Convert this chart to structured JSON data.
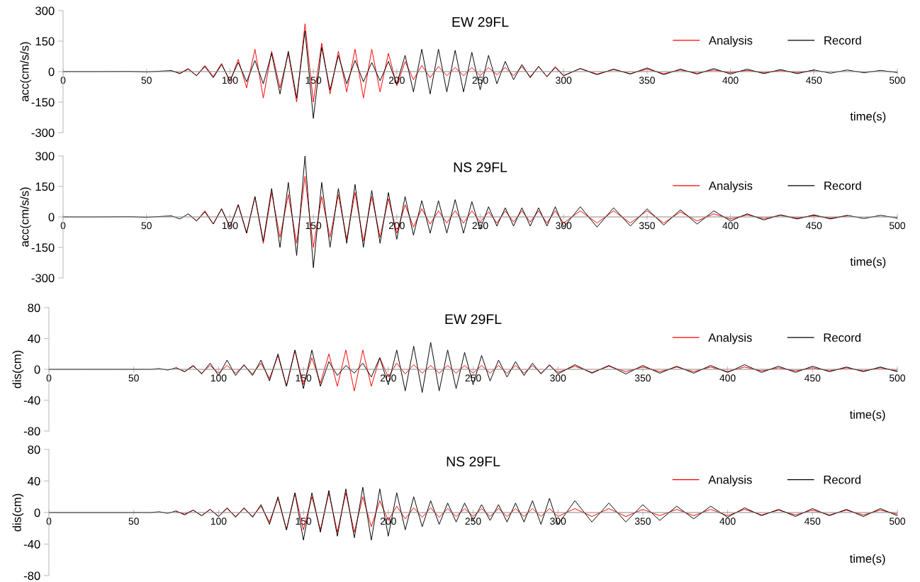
{
  "chart_data": [
    {
      "type": "line",
      "title": "EW 29FL",
      "xlabel": "time(s)",
      "ylabel": "acc(cm/s/s)",
      "xlim": [
        0,
        500
      ],
      "ylim": [
        -300,
        300
      ],
      "xticks": [
        0,
        50,
        100,
        150,
        200,
        250,
        300,
        350,
        400,
        450,
        500
      ],
      "yticks": [
        -300,
        -150,
        0,
        150,
        300
      ],
      "legend": "top right",
      "grid": false,
      "x": [
        0,
        20,
        40,
        50,
        60,
        65,
        70,
        75,
        80,
        85,
        90,
        95,
        100,
        105,
        110,
        115,
        120,
        125,
        130,
        135,
        140,
        145,
        150,
        155,
        160,
        165,
        170,
        175,
        180,
        185,
        190,
        195,
        200,
        205,
        210,
        215,
        220,
        225,
        230,
        235,
        240,
        245,
        250,
        255,
        260,
        265,
        270,
        275,
        280,
        285,
        290,
        295,
        300,
        310,
        320,
        330,
        340,
        350,
        360,
        370,
        380,
        390,
        400,
        410,
        420,
        430,
        440,
        450,
        460,
        470,
        480,
        490,
        500
      ],
      "series": [
        {
          "name": "Analysis",
          "color": "#ff0000",
          "values": [
            null,
            null,
            null,
            null,
            null,
            3,
            -8,
            15,
            -20,
            30,
            -25,
            40,
            -50,
            60,
            -80,
            110,
            -130,
            100,
            -80,
            90,
            -150,
            235,
            -150,
            140,
            -110,
            100,
            -100,
            110,
            -130,
            110,
            -100,
            90,
            -70,
            50,
            -40,
            30,
            -30,
            25,
            -20,
            20,
            -20,
            20,
            -20,
            20,
            -15,
            20,
            -20,
            25,
            -25,
            25,
            -25,
            25,
            -20,
            15,
            -12,
            10,
            -10,
            12,
            -10,
            8,
            -8,
            8,
            -6,
            6,
            -6,
            5,
            -5,
            6,
            null,
            null,
            null,
            null,
            null
          ]
        },
        {
          "name": "Record",
          "color": "#000000",
          "values": [
            0,
            0,
            1,
            -2,
            3,
            5,
            -10,
            12,
            -20,
            25,
            -30,
            35,
            -45,
            45,
            -50,
            55,
            -60,
            90,
            -110,
            100,
            -130,
            200,
            -230,
            120,
            -90,
            80,
            -60,
            55,
            -50,
            45,
            -45,
            50,
            -60,
            80,
            -100,
            110,
            -110,
            110,
            -100,
            105,
            -100,
            95,
            -90,
            80,
            -60,
            50,
            -40,
            35,
            -30,
            25,
            -25,
            20,
            -20,
            15,
            -15,
            12,
            -12,
            18,
            -15,
            12,
            -12,
            15,
            -12,
            12,
            -10,
            10,
            -10,
            8,
            -8,
            8,
            -6,
            6,
            -5
          ]
        }
      ]
    },
    {
      "type": "line",
      "title": "NS 29FL",
      "xlabel": "time(s)",
      "ylabel": "acc(cm/s/s)",
      "xlim": [
        0,
        500
      ],
      "ylim": [
        -300,
        300
      ],
      "xticks": [
        0,
        50,
        100,
        150,
        200,
        250,
        300,
        350,
        400,
        450,
        500
      ],
      "yticks": [
        -300,
        -150,
        0,
        150,
        300
      ],
      "legend": "top right",
      "grid": false,
      "x": [
        0,
        20,
        40,
        50,
        60,
        65,
        70,
        75,
        80,
        85,
        90,
        95,
        100,
        105,
        110,
        115,
        120,
        125,
        130,
        135,
        140,
        145,
        150,
        155,
        160,
        165,
        170,
        175,
        180,
        185,
        190,
        195,
        200,
        205,
        210,
        215,
        220,
        225,
        230,
        235,
        240,
        245,
        250,
        255,
        260,
        265,
        270,
        275,
        280,
        285,
        290,
        295,
        300,
        310,
        320,
        330,
        340,
        350,
        360,
        370,
        380,
        390,
        400,
        410,
        420,
        430,
        440,
        450,
        460,
        470,
        480,
        490,
        500
      ],
      "series": [
        {
          "name": "Analysis",
          "color": "#ff0000",
          "values": [
            null,
            null,
            null,
            null,
            null,
            null,
            null,
            15,
            -20,
            30,
            -35,
            40,
            -50,
            60,
            -80,
            100,
            -130,
            120,
            -100,
            110,
            -130,
            200,
            -150,
            100,
            -100,
            110,
            -110,
            120,
            -120,
            100,
            -100,
            90,
            -80,
            60,
            -50,
            40,
            -35,
            30,
            -30,
            30,
            -30,
            30,
            -25,
            25,
            -30,
            30,
            -25,
            30,
            -25,
            30,
            -30,
            30,
            -30,
            30,
            -30,
            30,
            -30,
            30,
            -30,
            25,
            -20,
            15,
            -10,
            10,
            -8,
            8,
            -6,
            6,
            -6,
            5,
            null,
            null,
            null
          ]
        },
        {
          "name": "Record",
          "color": "#000000",
          "values": [
            0,
            0,
            1,
            -2,
            3,
            5,
            -10,
            15,
            -20,
            25,
            -35,
            40,
            -50,
            60,
            -80,
            100,
            -120,
            140,
            -150,
            170,
            -190,
            300,
            -250,
            170,
            -150,
            140,
            -130,
            160,
            -150,
            130,
            -130,
            120,
            -110,
            100,
            -90,
            80,
            -80,
            80,
            -80,
            85,
            -80,
            75,
            -60,
            50,
            -45,
            45,
            -45,
            45,
            -45,
            45,
            -45,
            50,
            -50,
            50,
            -50,
            45,
            -45,
            40,
            -40,
            35,
            -35,
            30,
            -20,
            15,
            -15,
            10,
            -10,
            10,
            -10,
            8,
            -8,
            8,
            -6
          ]
        }
      ]
    },
    {
      "type": "line",
      "title": "EW 29FL",
      "xlabel": "time(s)",
      "ylabel": "dis(cm)",
      "xlim": [
        0,
        500
      ],
      "ylim": [
        -80,
        80
      ],
      "xticks": [
        0,
        50,
        100,
        150,
        200,
        250,
        300,
        350,
        400,
        450,
        500
      ],
      "yticks": [
        -80,
        -40,
        0,
        40,
        80
      ],
      "legend": "top right",
      "grid": false,
      "x": [
        0,
        20,
        40,
        50,
        60,
        65,
        70,
        75,
        80,
        85,
        90,
        95,
        100,
        105,
        110,
        115,
        120,
        125,
        130,
        135,
        140,
        145,
        150,
        155,
        160,
        165,
        170,
        175,
        180,
        185,
        190,
        195,
        200,
        205,
        210,
        215,
        220,
        225,
        230,
        235,
        240,
        245,
        250,
        255,
        260,
        265,
        270,
        275,
        280,
        285,
        290,
        295,
        300,
        310,
        320,
        330,
        340,
        350,
        360,
        370,
        380,
        390,
        400,
        410,
        420,
        430,
        440,
        450,
        460,
        470,
        480,
        490,
        500
      ],
      "series": [
        {
          "name": "Analysis",
          "color": "#ff0000",
          "values": [
            null,
            null,
            null,
            null,
            null,
            null,
            null,
            2,
            -3,
            4,
            -5,
            5,
            -5,
            5,
            -5,
            5,
            -6,
            8,
            -12,
            18,
            -22,
            25,
            -20,
            15,
            -18,
            20,
            -22,
            25,
            -28,
            25,
            -22,
            15,
            -10,
            8,
            -6,
            6,
            -5,
            5,
            -5,
            5,
            -5,
            5,
            -5,
            5,
            -5,
            5,
            -5,
            5,
            -5,
            5,
            -5,
            5,
            -4,
            4,
            -4,
            4,
            -3,
            3,
            -3,
            3,
            -3,
            3,
            -3,
            3,
            -2,
            2,
            -2,
            2,
            -2,
            2,
            -2,
            2,
            -2
          ]
        },
        {
          "name": "Record",
          "color": "#000000",
          "values": [
            0,
            0,
            0,
            0,
            0,
            1,
            -1,
            2,
            -3,
            5,
            -6,
            8,
            -8,
            12,
            -8,
            6,
            -8,
            12,
            -15,
            20,
            -22,
            25,
            -25,
            25,
            -22,
            10,
            -8,
            5,
            -5,
            8,
            -10,
            15,
            -20,
            25,
            -28,
            30,
            -30,
            35,
            -28,
            25,
            -25,
            22,
            -20,
            18,
            -15,
            12,
            -10,
            10,
            -8,
            8,
            -6,
            6,
            -6,
            6,
            -5,
            5,
            -6,
            5,
            -5,
            4,
            -5,
            5,
            -4,
            6,
            -4,
            4,
            -4,
            4,
            -3,
            3,
            -3,
            3,
            -3
          ]
        }
      ]
    },
    {
      "type": "line",
      "title": "NS 29FL",
      "xlabel": "time(s)",
      "ylabel": "dis(cm)",
      "xlim": [
        0,
        500
      ],
      "ylim": [
        -80,
        80
      ],
      "xticks": [
        0,
        50,
        100,
        150,
        200,
        250,
        300,
        350,
        400,
        450,
        500
      ],
      "yticks": [
        -80,
        -40,
        0,
        40,
        80
      ],
      "legend": "top right",
      "grid": false,
      "x": [
        0,
        20,
        40,
        50,
        60,
        65,
        70,
        75,
        80,
        85,
        90,
        95,
        100,
        105,
        110,
        115,
        120,
        125,
        130,
        135,
        140,
        145,
        150,
        155,
        160,
        165,
        170,
        175,
        180,
        185,
        190,
        195,
        200,
        205,
        210,
        215,
        220,
        225,
        230,
        235,
        240,
        245,
        250,
        255,
        260,
        265,
        270,
        275,
        280,
        285,
        290,
        295,
        300,
        310,
        320,
        330,
        340,
        350,
        360,
        370,
        380,
        390,
        400,
        410,
        420,
        430,
        440,
        450,
        460,
        470,
        480,
        490,
        500
      ],
      "series": [
        {
          "name": "Analysis",
          "color": "#ff0000",
          "values": [
            null,
            null,
            null,
            null,
            null,
            null,
            null,
            1,
            -2,
            3,
            -4,
            4,
            -5,
            5,
            -5,
            5,
            -5,
            8,
            -12,
            18,
            -22,
            25,
            -22,
            20,
            -22,
            25,
            -25,
            25,
            -25,
            20,
            -18,
            15,
            -10,
            8,
            -8,
            6,
            -6,
            6,
            -6,
            5,
            -5,
            5,
            -5,
            5,
            -5,
            5,
            -5,
            5,
            -5,
            5,
            -5,
            5,
            -5,
            5,
            -5,
            5,
            -5,
            4,
            -4,
            4,
            -4,
            4,
            -4,
            4,
            -3,
            3,
            -3,
            3,
            -3,
            3,
            -3,
            3,
            -2
          ]
        },
        {
          "name": "Record",
          "color": "#000000",
          "values": [
            0,
            0,
            0,
            0,
            0,
            1,
            -1,
            2,
            -3,
            3,
            -4,
            4,
            -5,
            6,
            -6,
            6,
            -6,
            10,
            -15,
            20,
            -22,
            25,
            -35,
            25,
            -25,
            28,
            -30,
            30,
            -32,
            32,
            -35,
            30,
            -30,
            25,
            -22,
            20,
            -18,
            15,
            -15,
            12,
            -12,
            12,
            -10,
            10,
            -10,
            10,
            -12,
            12,
            -12,
            15,
            -15,
            18,
            -15,
            15,
            -12,
            12,
            -12,
            10,
            -10,
            8,
            -8,
            8,
            -6,
            6,
            -4,
            4,
            -5,
            5,
            -4,
            4,
            -5,
            5,
            -4
          ]
        }
      ]
    }
  ]
}
